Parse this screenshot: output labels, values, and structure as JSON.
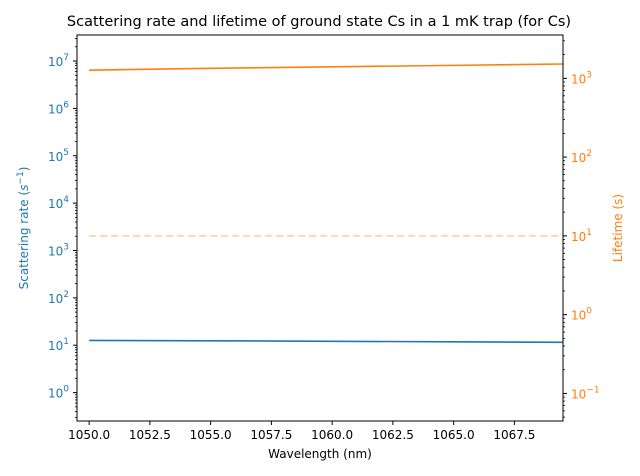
{
  "chart_data": {
    "type": "line",
    "title": "Scattering rate and lifetime of ground state Cs in a 1 mK trap (for Cs)",
    "xlabel": "Wavelength (nm)",
    "ylabel_left": "Scattering rate ($s^{-1}$)",
    "ylabel_left_parts": {
      "base": "Scattering rate (",
      "math": "s",
      "sup": "−1",
      "end": ")"
    },
    "ylabel_right": "Lifetime (s)",
    "xlim": [
      1049.5,
      1069.5
    ],
    "xticks": [
      1050.0,
      1052.5,
      1055.0,
      1057.5,
      1060.0,
      1062.5,
      1065.0,
      1067.5
    ],
    "xtick_labels": [
      "1050.0",
      "1052.5",
      "1055.0",
      "1057.5",
      "1060.0",
      "1062.5",
      "1065.0",
      "1067.5"
    ],
    "left_axis": {
      "scale": "log",
      "ylim_log10": [
        -0.6,
        7.55
      ],
      "tick_exponents": [
        0,
        1,
        2,
        3,
        4,
        5,
        6,
        7
      ],
      "color": "#1f77b4"
    },
    "right_axis": {
      "scale": "log",
      "ylim_log10": [
        -1.35,
        3.55
      ],
      "tick_exponents": [
        -1,
        0,
        1,
        2,
        3
      ],
      "color": "#ff7f0e"
    },
    "series": [
      {
        "axis": "left",
        "color": "#1f77b4",
        "style": "solid",
        "x": [
          1050.0,
          1055.0,
          1060.0,
          1065.0,
          1069.5
        ],
        "y": [
          12.6,
          12.4,
          12.1,
          11.8,
          11.5
        ]
      },
      {
        "axis": "right",
        "color": "#ff7f0e",
        "style": "solid",
        "x": [
          1050.0,
          1055.0,
          1060.0,
          1065.0,
          1069.5
        ],
        "y": [
          1270,
          1340,
          1400,
          1460,
          1520
        ]
      },
      {
        "axis": "right",
        "color": "#ffcc99",
        "style": "dashed",
        "x": [
          1050.0,
          1069.5
        ],
        "y": [
          10,
          10
        ]
      }
    ]
  }
}
